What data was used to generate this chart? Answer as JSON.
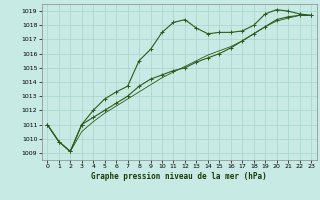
{
  "title": "Graphe pression niveau de la mer (hPa)",
  "bg_color": "#c8eae4",
  "grid_color": "#a8d4cc",
  "line_color": "#2d5a1b",
  "xlim": [
    -0.5,
    23.5
  ],
  "ylim": [
    1008.5,
    1019.5
  ],
  "xticks": [
    0,
    1,
    2,
    3,
    4,
    5,
    6,
    7,
    8,
    9,
    10,
    11,
    12,
    13,
    14,
    15,
    16,
    17,
    18,
    19,
    20,
    21,
    22,
    23
  ],
  "yticks": [
    1009,
    1010,
    1011,
    1012,
    1013,
    1014,
    1015,
    1016,
    1017,
    1018,
    1019
  ],
  "line1_x": [
    0,
    1,
    2,
    3,
    4,
    5,
    6,
    7,
    8,
    9,
    10,
    11,
    12,
    13,
    14,
    15,
    16,
    17,
    18,
    19,
    20,
    21,
    22,
    23
  ],
  "line1_y": [
    1011.0,
    1009.8,
    1009.1,
    1011.0,
    1012.0,
    1012.8,
    1013.3,
    1013.7,
    1015.5,
    1016.3,
    1017.5,
    1018.2,
    1018.4,
    1017.8,
    1017.4,
    1017.5,
    1017.5,
    1017.6,
    1018.0,
    1018.8,
    1019.1,
    1019.0,
    1018.8,
    1018.7
  ],
  "line2_x": [
    0,
    1,
    2,
    3,
    4,
    5,
    6,
    7,
    8,
    9,
    10,
    11,
    12,
    13,
    14,
    15,
    16,
    17,
    18,
    19,
    20,
    21,
    22,
    23
  ],
  "line2_y": [
    1011.0,
    1009.8,
    1009.1,
    1011.0,
    1011.5,
    1012.0,
    1012.5,
    1013.0,
    1013.7,
    1014.2,
    1014.5,
    1014.8,
    1015.0,
    1015.4,
    1015.7,
    1016.0,
    1016.4,
    1016.9,
    1017.4,
    1017.9,
    1018.4,
    1018.6,
    1018.7,
    1018.7
  ],
  "line3_x": [
    0,
    1,
    2,
    3,
    4,
    5,
    6,
    7,
    8,
    9,
    10,
    11,
    12,
    13,
    14,
    15,
    16,
    17,
    18,
    19,
    20,
    21,
    22,
    23
  ],
  "line3_y": [
    1011.0,
    1009.8,
    1009.1,
    1010.5,
    1011.2,
    1011.8,
    1012.3,
    1012.8,
    1013.3,
    1013.8,
    1014.3,
    1014.7,
    1015.1,
    1015.5,
    1015.9,
    1016.2,
    1016.5,
    1016.9,
    1017.4,
    1017.9,
    1018.3,
    1018.5,
    1018.7,
    1018.7
  ]
}
